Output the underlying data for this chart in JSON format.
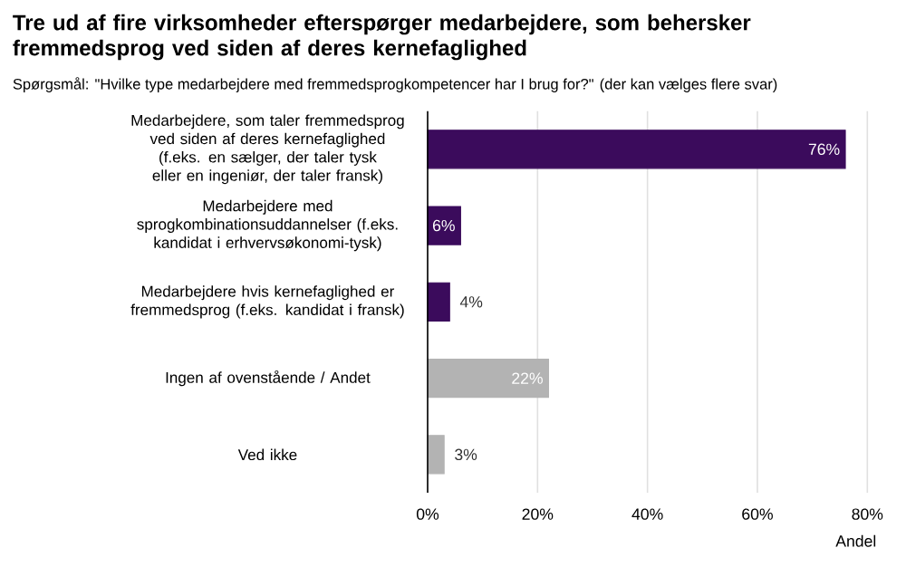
{
  "chart_data": {
    "type": "bar",
    "orientation": "horizontal",
    "title": "Tre ud af fire virksomheder efterspørger medarbejdere, som behersker fremmedsprog ved siden af deres kernefaglighed",
    "subtitle": "Spørgsmål: \"Hvilke type medarbejdere med fremmedsprogkompetencer har I brug for?\" (der kan vælges flere svar)",
    "categories": [
      "Medarbejdere, som taler fremmedsprog ved siden af deres kernefaglighed (f.eks. en sælger, der taler tysk eller en ingeniør, der taler fransk)",
      "Medarbejdere med sprogkombinationsuddannelser (f.eks. kandidat i erhvervsøkonomi-tysk)",
      "Medarbejdere hvis kernefaglighed er fremmedsprog (f.eks. kandidat i fransk)",
      "Ingen af ovenstående / Andet",
      "Ved ikke"
    ],
    "values": [
      76,
      6,
      4,
      22,
      3
    ],
    "value_labels": [
      "76%",
      "6%",
      "4%",
      "22%",
      "3%"
    ],
    "colors": [
      "#3b0b5c",
      "#3b0b5c",
      "#3b0b5c",
      "#b3b3b3",
      "#b3b3b3"
    ],
    "xlabel": "Andel",
    "xlim": [
      0,
      80
    ],
    "xticks": [
      {
        "value": 0,
        "label": "0%"
      },
      {
        "value": 20,
        "label": "20%"
      },
      {
        "value": 40,
        "label": "40%"
      },
      {
        "value": 60,
        "label": "60%"
      },
      {
        "value": 80,
        "label": "80%"
      }
    ],
    "grid": "x"
  }
}
